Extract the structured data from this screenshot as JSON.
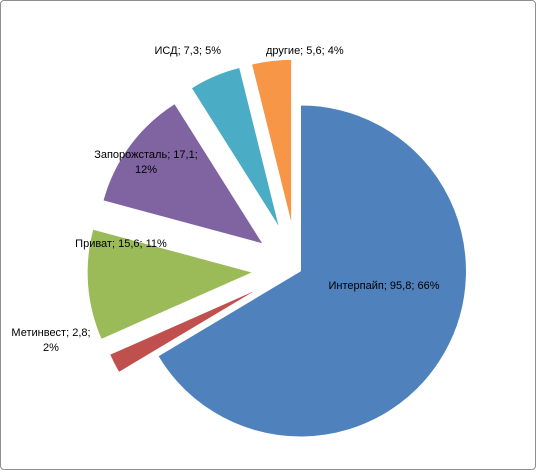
{
  "chart_data": {
    "type": "pie",
    "categories": [
      "Интерпайп",
      "Метинвест",
      "Приват",
      "Запорожсталь",
      "ИСД",
      "другие"
    ],
    "values": [
      95.8,
      2.8,
      15.6,
      17.1,
      7.3,
      5.6
    ],
    "value_labels": [
      "Интерпайп; 95,8; 66%",
      "Метинвест; 2,8; 2%",
      "Приват; 15,6; 11%",
      "Запорожсталь; 17,1; 12%",
      "ИСД; 7,3; 5%",
      "другие; 5,6; 4%"
    ],
    "colors": [
      "#4f81bd",
      "#c0504d",
      "#9bbb59",
      "#8064a2",
      "#4bacc6",
      "#f79646"
    ]
  }
}
